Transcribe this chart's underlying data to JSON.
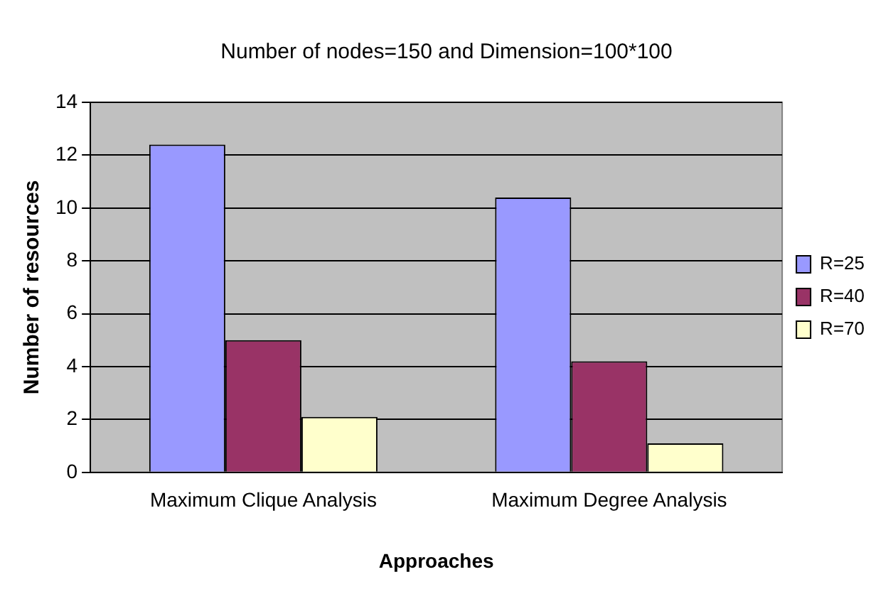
{
  "chart_data": {
    "type": "bar",
    "title": "Number of nodes=150 and Dimension=100*100",
    "xlabel": "Approaches",
    "ylabel": "Number of resources",
    "categories": [
      "Maximum Clique Analysis",
      "Maximum Degree Analysis"
    ],
    "series": [
      {
        "name": "R=25",
        "color": "#9999ff",
        "values": [
          12.4,
          10.4
        ]
      },
      {
        "name": "R=40",
        "color": "#993366",
        "values": [
          5,
          4.2
        ]
      },
      {
        "name": "R=70",
        "color": "#ffffcc",
        "values": [
          2.1,
          1.1
        ]
      }
    ],
    "ylim": [
      0,
      14
    ],
    "yticks": [
      0,
      2,
      4,
      6,
      8,
      10,
      12,
      14
    ],
    "grid": "y",
    "legend": "right"
  }
}
